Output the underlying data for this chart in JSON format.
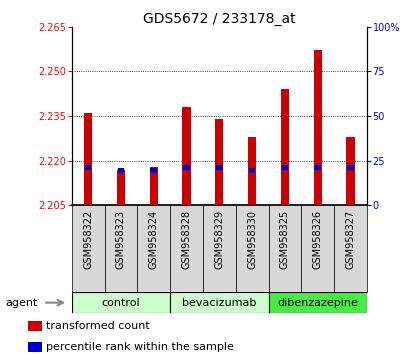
{
  "title": "GDS5672 / 233178_at",
  "samples": [
    "GSM958322",
    "GSM958323",
    "GSM958324",
    "GSM958328",
    "GSM958329",
    "GSM958330",
    "GSM958325",
    "GSM958326",
    "GSM958327"
  ],
  "transformed_counts": [
    2.236,
    2.217,
    2.218,
    2.238,
    2.234,
    2.228,
    2.244,
    2.257,
    2.228
  ],
  "percentile_values": [
    2.217,
    2.216,
    2.216,
    2.217,
    2.217,
    2.216,
    2.217,
    2.217,
    2.217
  ],
  "ylim_left": [
    2.205,
    2.265
  ],
  "ylim_right": [
    0,
    100
  ],
  "yticks_left": [
    2.205,
    2.22,
    2.235,
    2.25,
    2.265
  ],
  "yticks_right": [
    0,
    25,
    50,
    75,
    100
  ],
  "bar_color": "#cc0000",
  "percentile_color": "#0000cc",
  "bar_bottom": 2.205,
  "groups": [
    {
      "label": "control",
      "indices": [
        0,
        1,
        2
      ],
      "color": "#ccffcc"
    },
    {
      "label": "bevacizumab",
      "indices": [
        3,
        4,
        5
      ],
      "color": "#ccffcc"
    },
    {
      "label": "dibenzazepine",
      "indices": [
        6,
        7,
        8
      ],
      "color": "#44ee44"
    }
  ],
  "legend_items": [
    {
      "label": "transformed count",
      "color": "#cc0000"
    },
    {
      "label": "percentile rank within the sample",
      "color": "#0000cc"
    }
  ],
  "agent_label": "agent",
  "title_fontsize": 10,
  "tick_fontsize": 7,
  "label_fontsize": 8,
  "group_fontsize": 8,
  "bar_width": 0.25
}
